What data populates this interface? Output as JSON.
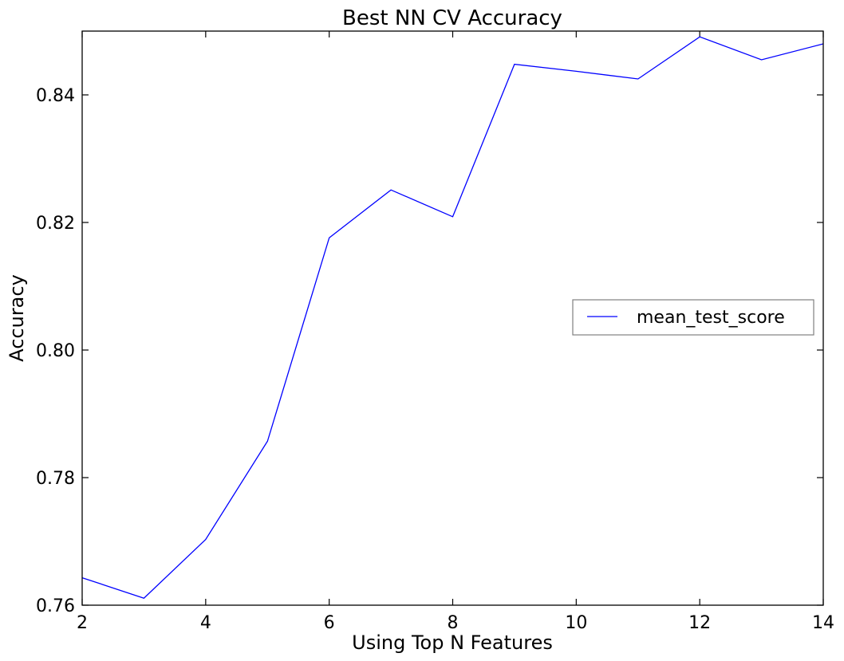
{
  "chart_data": {
    "type": "line",
    "title": "Best NN CV Accuracy",
    "xlabel": "Using Top N Features",
    "ylabel": "Accuracy",
    "xlim": [
      2,
      14
    ],
    "ylim": [
      0.76,
      0.85
    ],
    "xticks": [
      2,
      4,
      6,
      8,
      10,
      12,
      14
    ],
    "xtick_labels": [
      "2",
      "4",
      "6",
      "8",
      "10",
      "12",
      "14"
    ],
    "yticks": [
      0.76,
      0.78,
      0.8,
      0.82,
      0.84
    ],
    "ytick_labels": [
      "0.76",
      "0.78",
      "0.80",
      "0.82",
      "0.84"
    ],
    "grid": false,
    "legend_position": "center-right",
    "series": [
      {
        "name": "mean_test_score",
        "color": "#0000ff",
        "x": [
          2,
          3,
          4,
          5,
          6,
          7,
          8,
          9,
          10,
          11,
          12,
          13,
          14
        ],
        "y": [
          0.7643,
          0.7611,
          0.7703,
          0.7857,
          0.8176,
          0.8251,
          0.8209,
          0.8448,
          0.8437,
          0.8425,
          0.8491,
          0.8455,
          0.848
        ]
      }
    ]
  }
}
